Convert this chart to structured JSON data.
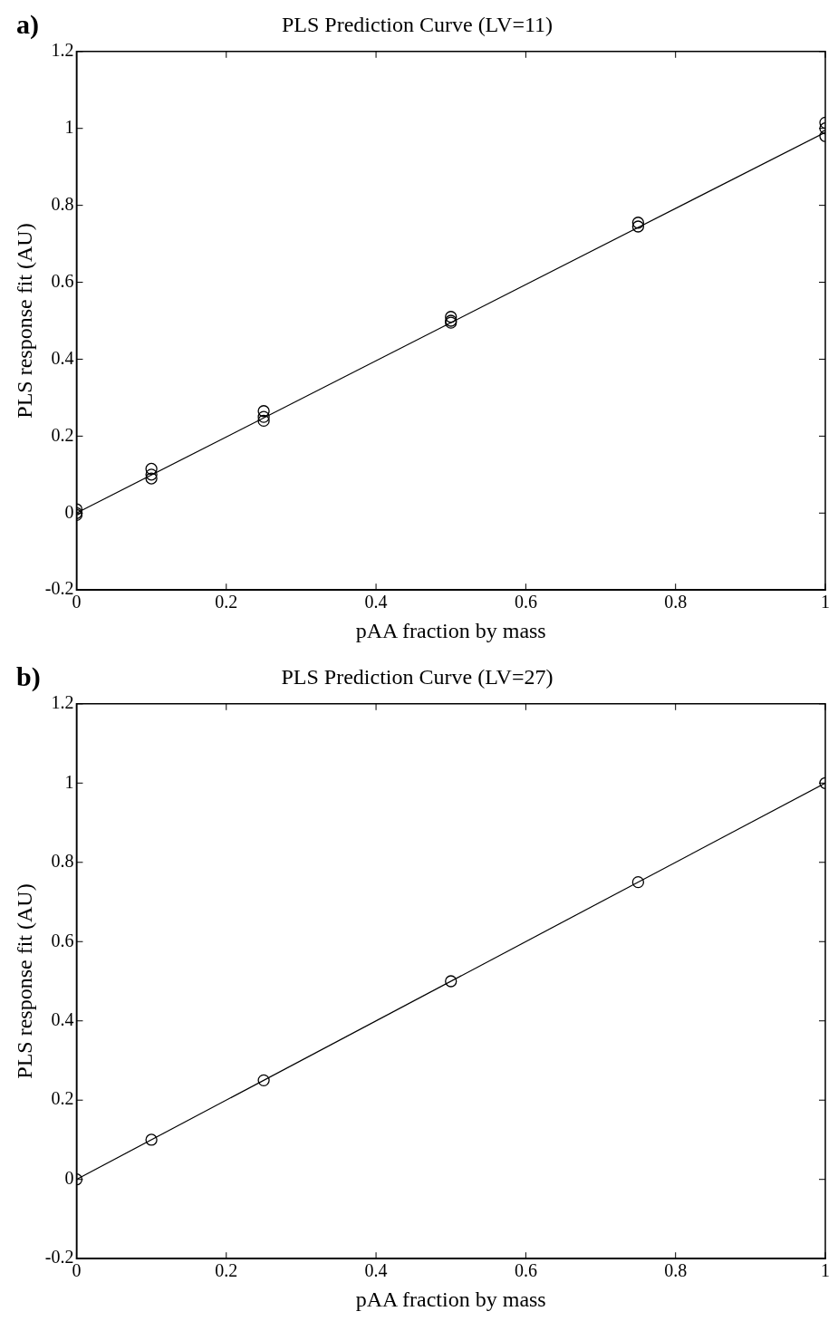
{
  "chart_data": [
    {
      "type": "scatter",
      "title": "PLS Prediction Curve (LV=11)",
      "xlabel": "pAA fraction by mass",
      "ylabel": "PLS response fit (AU)",
      "annotations": [
        "a)"
      ],
      "series": [
        {
          "type": "scatter",
          "color": "#000000",
          "marker": "circle",
          "x": [
            0,
            0,
            0,
            0.1,
            0.1,
            0.1,
            0.25,
            0.25,
            0.25,
            0.5,
            0.5,
            0.5,
            0.75,
            0.75,
            1,
            1,
            1
          ],
          "values": [
            -0.005,
            0,
            0.01,
            0.09,
            0.1,
            0.115,
            0.24,
            0.25,
            0.265,
            0.495,
            0.5,
            0.51,
            0.745,
            0.755,
            0.98,
            1,
            1.015
          ]
        },
        {
          "type": "line",
          "color": "#000000",
          "marker": "none",
          "x": [
            0,
            1
          ],
          "values": [
            0,
            0.99
          ]
        }
      ],
      "xlim": [
        0,
        1
      ],
      "xticks": [
        0,
        0.2,
        0.4,
        0.6,
        0.8,
        1
      ],
      "ylim": [
        -0.2,
        1.2
      ],
      "yticks": [
        -0.2,
        0,
        0.2,
        0.4,
        0.6,
        0.8,
        1,
        1.2
      ],
      "grid": false,
      "legend": false
    },
    {
      "type": "scatter",
      "title": "PLS Prediction Curve (LV=27)",
      "xlabel": "pAA fraction by mass",
      "ylabel": "PLS response fit (AU)",
      "annotations": [
        "b)"
      ],
      "series": [
        {
          "type": "scatter",
          "color": "#000000",
          "marker": "circle",
          "x": [
            0,
            0.1,
            0.25,
            0.5,
            0.75,
            1
          ],
          "values": [
            0,
            0.1,
            0.25,
            0.5,
            0.75,
            1
          ]
        },
        {
          "type": "line",
          "color": "#000000",
          "marker": "none",
          "x": [
            0,
            1
          ],
          "values": [
            0,
            1
          ]
        }
      ],
      "xlim": [
        0,
        1
      ],
      "xticks": [
        0,
        0.2,
        0.4,
        0.6,
        0.8,
        1
      ],
      "ylim": [
        -0.2,
        1.2
      ],
      "yticks": [
        -0.2,
        0,
        0.2,
        0.4,
        0.6,
        0.8,
        1,
        1.2
      ],
      "grid": false,
      "legend": false
    }
  ]
}
